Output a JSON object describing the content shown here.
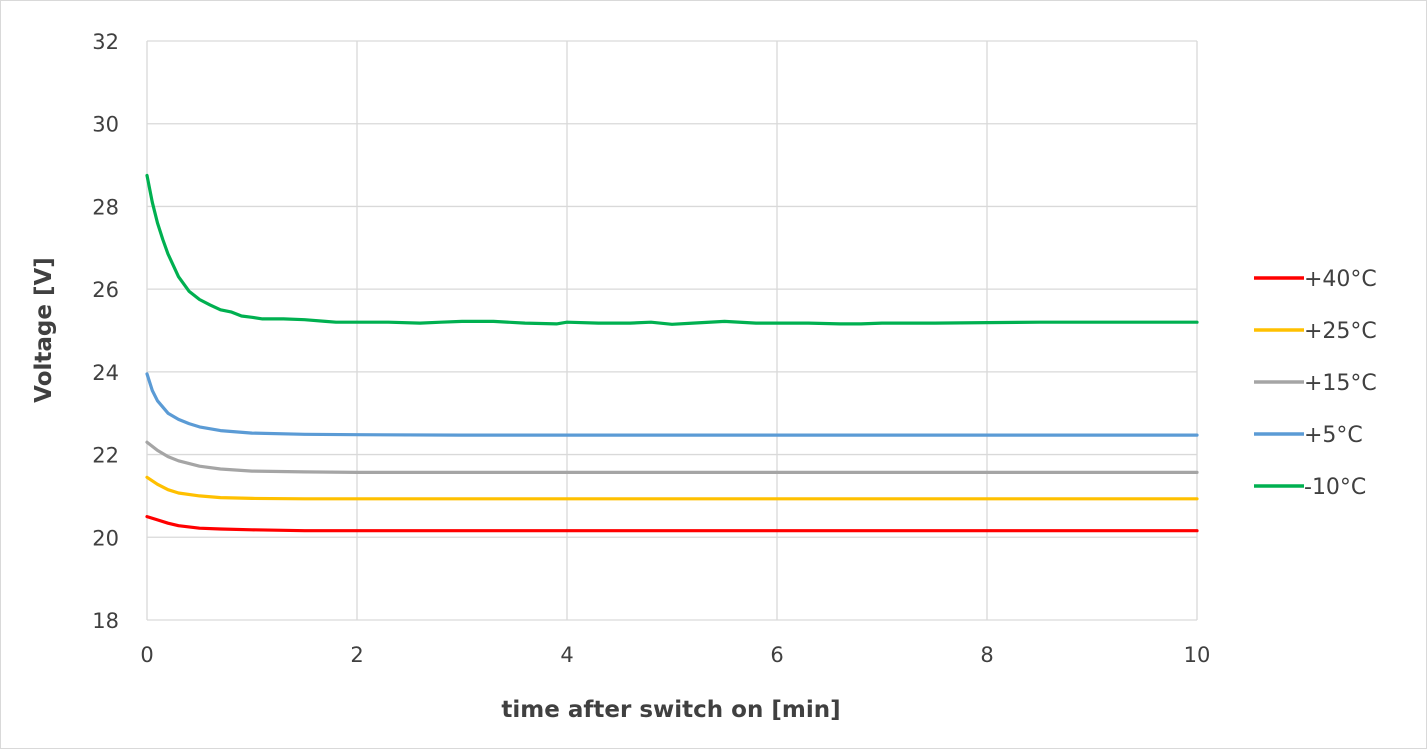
{
  "chart_data": {
    "type": "line",
    "title": "",
    "xlabel": "time after switch on [min]",
    "ylabel": "Voltage [V]",
    "xlim": [
      0,
      10
    ],
    "ylim": [
      18,
      32
    ],
    "xticks": [
      "0",
      "2",
      "4",
      "6",
      "8",
      "10"
    ],
    "yticks": [
      "18",
      "20",
      "22",
      "24",
      "26",
      "28",
      "30",
      "32"
    ],
    "grid": true,
    "legend_position": "right",
    "series": [
      {
        "name": "+40°C",
        "color": "#ff0000",
        "x": [
          0,
          0.1,
          0.2,
          0.3,
          0.5,
          0.7,
          1.0,
          1.5,
          2,
          3,
          4,
          5,
          6,
          7,
          8,
          9,
          10
        ],
        "y": [
          20.5,
          20.42,
          20.34,
          20.28,
          20.22,
          20.2,
          20.18,
          20.16,
          20.16,
          20.16,
          20.16,
          20.16,
          20.16,
          20.16,
          20.16,
          20.16,
          20.16
        ]
      },
      {
        "name": "+25°C",
        "color": "#ffc000",
        "x": [
          0,
          0.1,
          0.2,
          0.3,
          0.5,
          0.7,
          1.0,
          1.5,
          2,
          3,
          4,
          5,
          6,
          7,
          8,
          9,
          10
        ],
        "y": [
          21.45,
          21.28,
          21.15,
          21.07,
          21.0,
          20.96,
          20.94,
          20.93,
          20.93,
          20.93,
          20.93,
          20.93,
          20.93,
          20.93,
          20.93,
          20.93,
          20.93
        ]
      },
      {
        "name": "+15°C",
        "color": "#a5a5a5",
        "x": [
          0,
          0.1,
          0.2,
          0.3,
          0.5,
          0.7,
          1.0,
          1.5,
          2,
          3,
          4,
          5,
          6,
          7,
          8,
          9,
          10
        ],
        "y": [
          22.3,
          22.1,
          21.95,
          21.85,
          21.72,
          21.65,
          21.6,
          21.58,
          21.57,
          21.57,
          21.57,
          21.57,
          21.57,
          21.57,
          21.57,
          21.57,
          21.57
        ]
      },
      {
        "name": "+5°C",
        "color": "#5b9bd5",
        "x": [
          0,
          0.05,
          0.1,
          0.2,
          0.3,
          0.4,
          0.5,
          0.7,
          1.0,
          1.5,
          2,
          3,
          4,
          5,
          6,
          7,
          8,
          9,
          10
        ],
        "y": [
          23.95,
          23.55,
          23.3,
          23.0,
          22.85,
          22.75,
          22.67,
          22.58,
          22.52,
          22.49,
          22.48,
          22.47,
          22.47,
          22.47,
          22.47,
          22.47,
          22.47,
          22.47,
          22.47
        ]
      },
      {
        "name": "-10°C",
        "color": "#00b050",
        "x": [
          0,
          0.05,
          0.1,
          0.15,
          0.2,
          0.3,
          0.4,
          0.5,
          0.6,
          0.7,
          0.8,
          0.9,
          1.0,
          1.1,
          1.3,
          1.5,
          1.7,
          1.8,
          2.0,
          2.3,
          2.6,
          2.8,
          3.0,
          3.3,
          3.6,
          3.9,
          4.0,
          4.3,
          4.6,
          4.8,
          5.0,
          5.2,
          5.5,
          5.8,
          6.0,
          6.3,
          6.6,
          6.8,
          7.0,
          7.5,
          8.0,
          8.5,
          9.0,
          9.5,
          10.0
        ],
        "y": [
          28.75,
          28.1,
          27.6,
          27.2,
          26.85,
          26.3,
          25.95,
          25.75,
          25.62,
          25.5,
          25.45,
          25.35,
          25.32,
          25.28,
          25.28,
          25.26,
          25.22,
          25.2,
          25.2,
          25.2,
          25.18,
          25.2,
          25.22,
          25.22,
          25.18,
          25.16,
          25.2,
          25.18,
          25.18,
          25.2,
          25.15,
          25.18,
          25.22,
          25.18,
          25.18,
          25.18,
          25.16,
          25.16,
          25.18,
          25.18,
          25.19,
          25.2,
          25.2,
          25.2,
          25.2
        ]
      }
    ]
  }
}
